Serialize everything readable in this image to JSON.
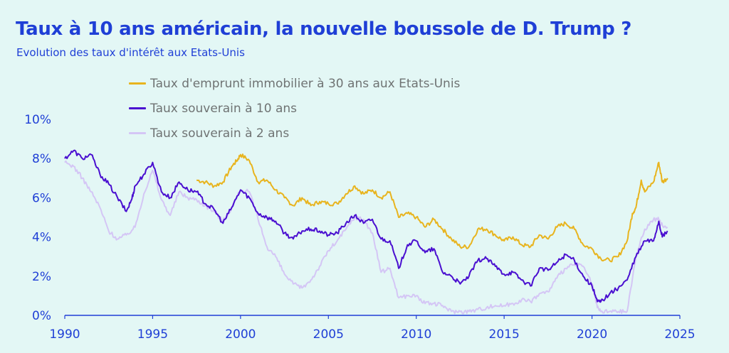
{
  "title": "Taux à 10 ans américain, la nouvelle boussole de D. Trump ?",
  "subtitle": "Evolution des taux d'intérêt aux Etats-Unis",
  "legend": [
    {
      "label": "Taux d'emprunt immobilier à 30 ans aux Etats-Unis",
      "color": "#e8b41e"
    },
    {
      "label": "Taux souverain à 10 ans",
      "color": "#4a0fd0"
    },
    {
      "label": "Taux souverain à 2 ans",
      "color": "#d4c6f5"
    }
  ],
  "chart_data": {
    "type": "line",
    "title": "",
    "xlabel": "",
    "ylabel": "",
    "xlim": [
      1990,
      2025
    ],
    "ylim": [
      0,
      10
    ],
    "x_ticks": [
      "1990",
      "1995",
      "2000",
      "2005",
      "2010",
      "2015",
      "2020",
      "2025"
    ],
    "y_ticks": [
      "0%",
      "2%",
      "4%",
      "6%",
      "8%",
      "10%"
    ],
    "grid": false,
    "legend_position": "top-left",
    "series": [
      {
        "name": "Taux d'emprunt immobilier à 30 ans aux Etats-Unis",
        "color": "#e8b41e",
        "x": [
          1997.5,
          1998,
          1998.5,
          1999,
          1999.5,
          1999.8,
          2000,
          2000.5,
          2001,
          2001.5,
          2002,
          2002.5,
          2003,
          2003.5,
          2004,
          2004.5,
          2005,
          2005.5,
          2006,
          2006.5,
          2007,
          2007.5,
          2008,
          2008.5,
          2009,
          2009.5,
          2010,
          2010.5,
          2011,
          2011.5,
          2012,
          2012.5,
          2013,
          2013.5,
          2014,
          2014.5,
          2015,
          2015.5,
          2016,
          2016.5,
          2017,
          2017.5,
          2018,
          2018.5,
          2019,
          2019.5,
          2020,
          2020.5,
          2021,
          2021.5,
          2022,
          2022.3,
          2022.5,
          2022.8,
          2023,
          2023.5,
          2023.8,
          2024,
          2024.3
        ],
        "values": [
          6.9,
          6.8,
          6.6,
          6.8,
          7.6,
          7.9,
          8.2,
          7.9,
          6.8,
          6.9,
          6.4,
          6.0,
          5.6,
          6.0,
          5.6,
          5.8,
          5.7,
          5.7,
          6.2,
          6.6,
          6.2,
          6.4,
          6.0,
          6.3,
          5.0,
          5.2,
          5.0,
          4.5,
          4.9,
          4.4,
          3.9,
          3.5,
          3.5,
          4.4,
          4.4,
          4.1,
          3.8,
          4.0,
          3.6,
          3.5,
          4.1,
          3.9,
          4.5,
          4.7,
          4.4,
          3.6,
          3.4,
          2.9,
          2.8,
          3.0,
          3.8,
          5.2,
          5.5,
          6.9,
          6.3,
          6.8,
          7.8,
          6.8,
          7.0
        ]
      },
      {
        "name": "Taux souverain à 10 ans",
        "color": "#4a0fd0",
        "x": [
          1990,
          1990.5,
          1991,
          1991.5,
          1992,
          1992.5,
          1993,
          1993.5,
          1993.8,
          1994,
          1994.5,
          1995,
          1995.5,
          1996,
          1996.5,
          1997,
          1997.5,
          1998,
          1998.5,
          1999,
          1999.5,
          2000,
          2000.5,
          2001,
          2001.5,
          2002,
          2002.5,
          2003,
          2003.5,
          2004,
          2004.5,
          2005,
          2005.5,
          2006,
          2006.5,
          2007,
          2007.5,
          2008,
          2008.5,
          2009,
          2009.5,
          2010,
          2010.5,
          2011,
          2011.5,
          2012,
          2012.5,
          2013,
          2013.5,
          2014,
          2014.5,
          2015,
          2015.5,
          2016,
          2016.5,
          2017,
          2017.5,
          2018,
          2018.5,
          2019,
          2019.5,
          2020,
          2020.3,
          2020.5,
          2021,
          2021.5,
          2022,
          2022.5,
          2023,
          2023.5,
          2023.8,
          2024,
          2024.3
        ],
        "values": [
          8.0,
          8.4,
          8.0,
          8.2,
          7.2,
          6.7,
          6.0,
          5.3,
          5.9,
          6.6,
          7.2,
          7.8,
          6.3,
          6.0,
          6.8,
          6.4,
          6.3,
          5.7,
          5.4,
          4.7,
          5.5,
          6.4,
          6.0,
          5.2,
          5.0,
          4.8,
          4.2,
          3.9,
          4.3,
          4.4,
          4.3,
          4.1,
          4.2,
          4.7,
          5.1,
          4.7,
          4.9,
          3.9,
          3.8,
          2.4,
          3.6,
          3.8,
          3.2,
          3.4,
          2.2,
          2.0,
          1.6,
          2.0,
          2.8,
          2.9,
          2.5,
          2.1,
          2.2,
          1.8,
          1.5,
          2.4,
          2.3,
          2.7,
          3.1,
          2.8,
          2.0,
          1.5,
          0.7,
          0.7,
          1.1,
          1.4,
          1.8,
          3.0,
          3.8,
          3.8,
          4.8,
          4.0,
          4.3
        ]
      },
      {
        "name": "Taux souverain à 2 ans",
        "color": "#d4c6f5",
        "x": [
          1990,
          1990.5,
          1991,
          1991.5,
          1992,
          1992.5,
          1993,
          1993.5,
          1994,
          1994.5,
          1995,
          1995.5,
          1996,
          1996.5,
          1997,
          1997.5,
          1998,
          1998.5,
          1999,
          1999.5,
          2000,
          2000.5,
          2001,
          2001.5,
          2002,
          2002.5,
          2003,
          2003.5,
          2004,
          2004.5,
          2005,
          2005.5,
          2006,
          2006.5,
          2007,
          2007.5,
          2008,
          2008.5,
          2009,
          2009.5,
          2010,
          2010.5,
          2011,
          2011.5,
          2012,
          2012.5,
          2013,
          2013.5,
          2014,
          2014.5,
          2015,
          2015.5,
          2016,
          2016.5,
          2017,
          2017.5,
          2018,
          2018.5,
          2019,
          2019.5,
          2020,
          2020.3,
          2020.5,
          2021,
          2021.5,
          2022,
          2022.5,
          2023,
          2023.5,
          2023.8,
          2024,
          2024.3
        ],
        "values": [
          7.8,
          7.6,
          7.0,
          6.3,
          5.5,
          4.3,
          3.9,
          4.1,
          4.5,
          6.2,
          7.4,
          5.9,
          5.1,
          6.3,
          6.0,
          5.9,
          5.6,
          5.3,
          4.8,
          5.5,
          6.4,
          6.3,
          4.9,
          3.5,
          3.0,
          2.1,
          1.6,
          1.4,
          1.8,
          2.5,
          3.3,
          3.8,
          4.4,
          5.0,
          4.9,
          4.2,
          2.2,
          2.4,
          0.9,
          1.0,
          1.0,
          0.6,
          0.6,
          0.5,
          0.2,
          0.2,
          0.2,
          0.3,
          0.4,
          0.5,
          0.5,
          0.6,
          0.8,
          0.7,
          1.1,
          1.2,
          1.9,
          2.4,
          2.6,
          2.5,
          1.6,
          0.4,
          0.2,
          0.2,
          0.2,
          0.2,
          3.0,
          4.4,
          4.9,
          4.9,
          4.6,
          4.5
        ]
      }
    ]
  }
}
